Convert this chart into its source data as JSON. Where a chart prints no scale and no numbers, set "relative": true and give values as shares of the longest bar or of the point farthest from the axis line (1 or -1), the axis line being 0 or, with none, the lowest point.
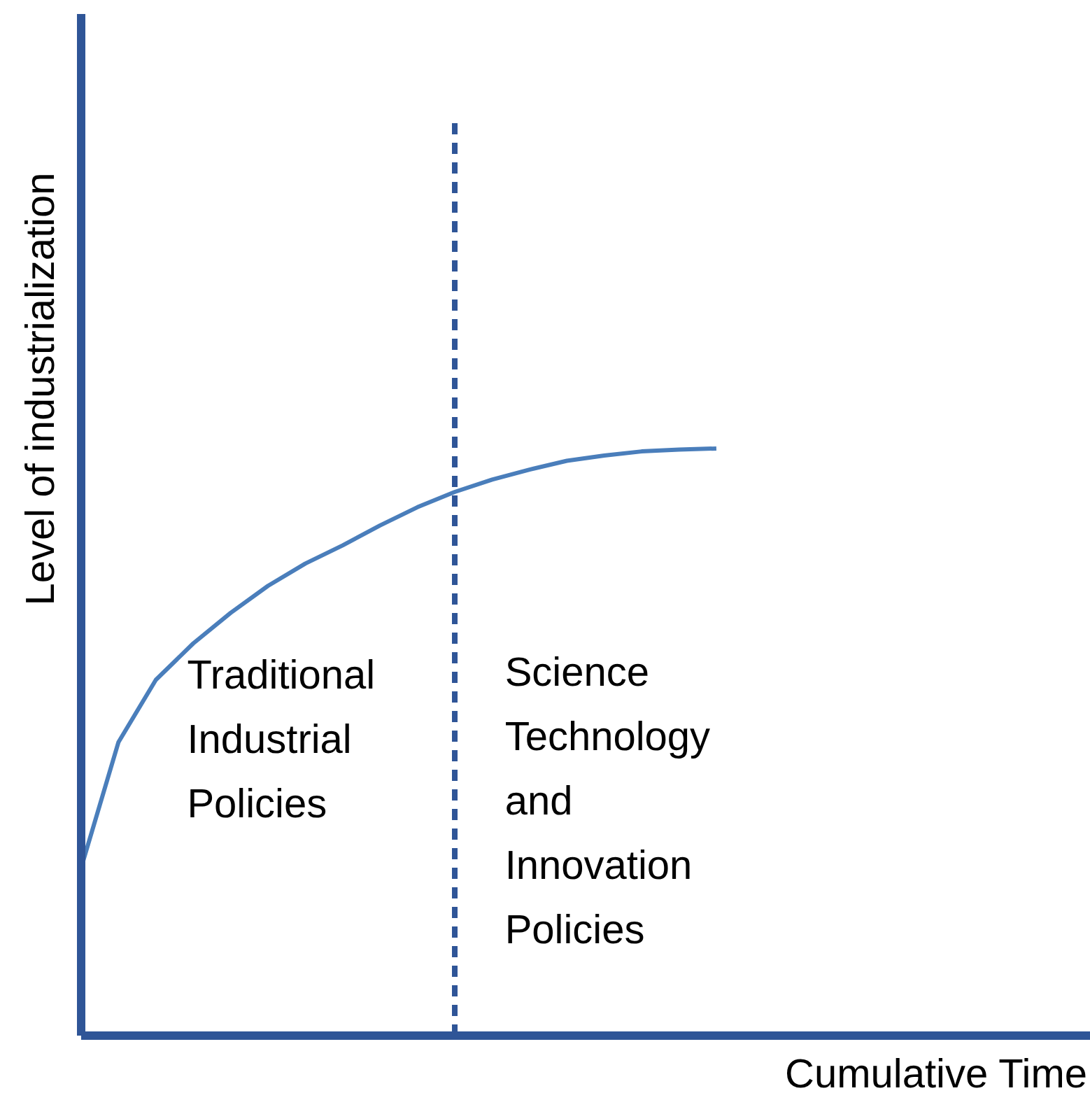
{
  "chart_data": {
    "type": "line",
    "relative": true,
    "ylabel": "Level of industrialization",
    "xlabel": "Cumulative Time",
    "categories": [
      null,
      null,
      null,
      null,
      null,
      null,
      null,
      null,
      null,
      null,
      null,
      null,
      null,
      null,
      null,
      null,
      null,
      null,
      null,
      null,
      null,
      null,
      null,
      null,
      null,
      null,
      null,
      null
    ],
    "grid": false,
    "legend": false,
    "marker": "none",
    "line_style": "solid",
    "series": [
      {
        "color": "#4a7ebb",
        "values": [
          0.286,
          0.5,
          0.606,
          0.668,
          0.72,
          0.766,
          0.804,
          0.835,
          0.869,
          0.9,
          0.926,
          0.947,
          0.964,
          0.979,
          0.988,
          0.995,
          0.998,
          1,
          null,
          null,
          null,
          null,
          null,
          null,
          null,
          null,
          null,
          null
        ]
      }
    ],
    "annotations": [
      "Traditional Industrial Policies",
      "Science Technology and Innovation Policies"
    ]
  }
}
